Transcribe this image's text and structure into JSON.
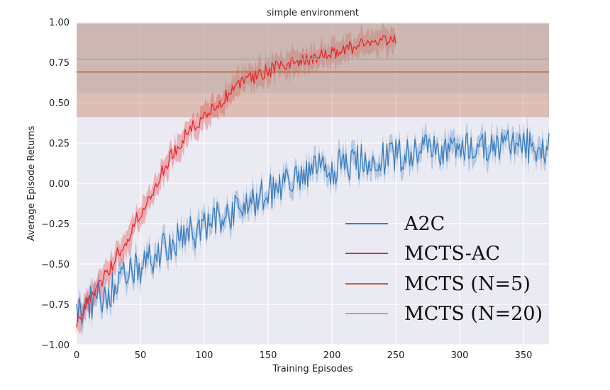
{
  "chart_data": {
    "type": "line",
    "title": "simple environment",
    "xlabel": "Training Episodes",
    "ylabel": "Average Episode Returns",
    "xlim": [
      0,
      370
    ],
    "ylim": [
      -1.0,
      1.0
    ],
    "xticks": [
      0,
      50,
      100,
      150,
      200,
      250,
      300,
      350
    ],
    "yticks": [
      -1.0,
      -0.75,
      -0.5,
      -0.25,
      0.0,
      0.25,
      0.5,
      0.75,
      1.0
    ],
    "xtick_labels": [
      "0",
      "50",
      "100",
      "150",
      "200",
      "250",
      "300",
      "350"
    ],
    "ytick_labels": [
      "−1.00",
      "−0.75",
      "−0.50",
      "−0.25",
      "0.00",
      "0.25",
      "0.50",
      "0.75",
      "1.00"
    ],
    "grid": true,
    "legend_position": "lower-right",
    "series": [
      {
        "name": "A2C",
        "color": "#3b7dbf",
        "style": "noisy-line-with-band",
        "x": [
          0,
          20,
          40,
          60,
          80,
          100,
          120,
          140,
          160,
          180,
          200,
          220,
          240,
          260,
          280,
          300,
          320,
          340,
          370
        ],
        "y": [
          -0.8,
          -0.7,
          -0.58,
          -0.46,
          -0.35,
          -0.27,
          -0.18,
          -0.1,
          -0.02,
          0.05,
          0.1,
          0.13,
          0.16,
          0.19,
          0.21,
          0.22,
          0.23,
          0.23,
          0.23
        ]
      },
      {
        "name": "MCTS-AC",
        "color": "#e8292a",
        "style": "noisy-line-with-band",
        "x": [
          0,
          10,
          20,
          30,
          40,
          50,
          60,
          70,
          80,
          90,
          100,
          110,
          120,
          130,
          140,
          150,
          160,
          170,
          180,
          190,
          200,
          210,
          220,
          230,
          240,
          250
        ],
        "y": [
          -0.85,
          -0.72,
          -0.6,
          -0.47,
          -0.33,
          -0.18,
          -0.03,
          0.12,
          0.24,
          0.34,
          0.42,
          0.49,
          0.56,
          0.62,
          0.66,
          0.7,
          0.72,
          0.74,
          0.76,
          0.78,
          0.8,
          0.83,
          0.85,
          0.87,
          0.89,
          0.9
        ]
      },
      {
        "name": "MCTS (N=5)",
        "color": "#c0613a",
        "style": "horizontal-line-with-band",
        "y": 0.69,
        "band": [
          0.41,
          0.99
        ]
      },
      {
        "name": "MCTS (N=20)",
        "color": "#a8a8a8",
        "style": "horizontal-line-with-band",
        "y": 0.77,
        "band": [
          0.56,
          0.99
        ]
      }
    ]
  }
}
